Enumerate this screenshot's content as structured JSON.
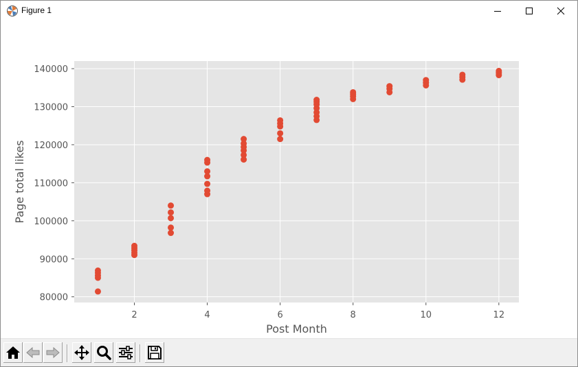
{
  "window": {
    "title": "Figure 1",
    "icons": {
      "app": "matplotlib-icon",
      "minimize": "minimize-icon",
      "maximize": "maximize-icon",
      "close": "close-icon"
    }
  },
  "toolbar": {
    "buttons": [
      {
        "icon": "home-icon"
      },
      {
        "icon": "back-arrow-icon"
      },
      {
        "icon": "forward-arrow-icon"
      },
      {
        "icon": "pan-move-icon"
      },
      {
        "icon": "zoom-magnifier-icon"
      },
      {
        "icon": "subplots-sliders-icon"
      },
      {
        "icon": "save-disk-icon"
      }
    ]
  },
  "chart_data": {
    "type": "scatter",
    "title": "",
    "xlabel": "Post Month",
    "ylabel": "Page total likes",
    "xlim": [
      0.35,
      12.55
    ],
    "ylim": [
      78500,
      142000
    ],
    "xticks": [
      2,
      4,
      6,
      8,
      10,
      12
    ],
    "xtick_labels": [
      "2",
      "4",
      "6",
      "8",
      "10",
      "12"
    ],
    "yticks": [
      80000,
      90000,
      100000,
      110000,
      120000,
      130000,
      140000
    ],
    "ytick_labels": [
      "80000",
      "90000",
      "100000",
      "110000",
      "120000",
      "130000",
      "140000"
    ],
    "grid": true,
    "style": "ggplot",
    "colors": {
      "marker": "#E24A33",
      "plot_bg": "#E5E5E5",
      "grid": "#FFFFFF",
      "text": "#555555"
    },
    "points": [
      [
        1,
        81400
      ],
      [
        1,
        85000
      ],
      [
        1,
        85600
      ],
      [
        1,
        86300
      ],
      [
        1,
        86900
      ],
      [
        2,
        91000
      ],
      [
        2,
        91600
      ],
      [
        2,
        92200
      ],
      [
        2,
        92800
      ],
      [
        2,
        93400
      ],
      [
        3,
        96800
      ],
      [
        3,
        98200
      ],
      [
        3,
        100700
      ],
      [
        3,
        102200
      ],
      [
        3,
        104000
      ],
      [
        4,
        107000
      ],
      [
        4,
        107900
      ],
      [
        4,
        109700
      ],
      [
        4,
        111700
      ],
      [
        4,
        113000
      ],
      [
        4,
        115300
      ],
      [
        4,
        116000
      ],
      [
        5,
        116100
      ],
      [
        5,
        117300
      ],
      [
        5,
        118500
      ],
      [
        5,
        119400
      ],
      [
        5,
        120300
      ],
      [
        5,
        121500
      ],
      [
        6,
        121500
      ],
      [
        6,
        123000
      ],
      [
        6,
        124800
      ],
      [
        6,
        125600
      ],
      [
        6,
        126400
      ],
      [
        7,
        126500
      ],
      [
        7,
        127500
      ],
      [
        7,
        128500
      ],
      [
        7,
        129600
      ],
      [
        7,
        130600
      ],
      [
        7,
        131300
      ],
      [
        7,
        131800
      ],
      [
        8,
        132000
      ],
      [
        8,
        132700
      ],
      [
        8,
        133300
      ],
      [
        8,
        133800
      ],
      [
        9,
        133800
      ],
      [
        9,
        134700
      ],
      [
        9,
        135400
      ],
      [
        10,
        135600
      ],
      [
        10,
        136300
      ],
      [
        10,
        137000
      ],
      [
        11,
        137100
      ],
      [
        11,
        137800
      ],
      [
        11,
        138400
      ],
      [
        12,
        138300
      ],
      [
        12,
        138900
      ],
      [
        12,
        139400
      ]
    ]
  }
}
